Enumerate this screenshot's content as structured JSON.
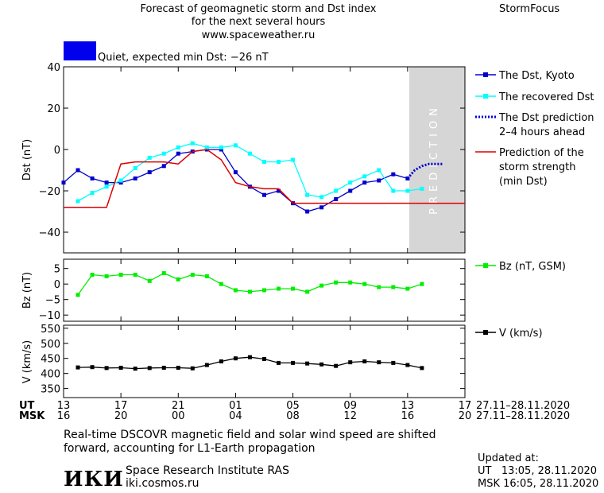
{
  "header": {
    "title_line1": "Forecast of geomagnetic storm and Dst index",
    "title_line2": "for the next several hours",
    "website": "www.spaceweather.ru",
    "brand": "StormFocus"
  },
  "status": {
    "text": "Quiet, expected min Dst: −26 nT",
    "color": "#0000ee"
  },
  "prediction_label": "PREDICTION",
  "time_axis": {
    "ut_label": "UT",
    "msk_label": "MSK",
    "ut_ticks": [
      "13",
      "17",
      "21",
      "01",
      "05",
      "09",
      "13",
      "17"
    ],
    "msk_ticks": [
      "16",
      "20",
      "00",
      "04",
      "08",
      "12",
      "16",
      "20"
    ],
    "ut_range": "27.11–28.11.2020",
    "msk_range": "27.11–28.11.2020"
  },
  "footer": {
    "note_line1": "Real-time DSCOVR magnetic field and solar wind speed are shifted",
    "note_line2": "forward, accounting for L1-Earth propagation",
    "logo_text": "ИКИ",
    "institute": "Space Research Institute RAS",
    "site": "iki.cosmos.ru",
    "updated_label": "Updated at:",
    "updated_ut": "UT   13:05, 28.11.2020",
    "updated_msk": "MSK 16:05, 28.11.2020"
  },
  "chart_data": [
    {
      "type": "line",
      "ylabel": "Dst (nT)",
      "ylim": [
        -50,
        40
      ],
      "yticks": [
        40,
        20,
        0,
        -20,
        -40
      ],
      "xlim": [
        13,
        41
      ],
      "prediction_region": [
        37,
        41
      ],
      "legend": [
        {
          "label": "The Dst, Kyoto",
          "color": "#0000cc",
          "style": "solid-square"
        },
        {
          "label": "The recovered Dst",
          "color": "#00ffff",
          "style": "solid-square"
        },
        {
          "label": "The Dst prediction\n2–4 hours ahead",
          "color": "#0000cc",
          "style": "dotted"
        },
        {
          "label": "Prediction of the\nstorm strength\n(min Dst)",
          "color": "#dd0000",
          "style": "solid"
        }
      ],
      "series": [
        {
          "name": "The Dst, Kyoto",
          "color": "#0000cc",
          "x": [
            13,
            14,
            15,
            16,
            17,
            18,
            19,
            20,
            21,
            22,
            23,
            24,
            25,
            26,
            27,
            28,
            29,
            30,
            31,
            32,
            33,
            34,
            35,
            36,
            37
          ],
          "y": [
            -16,
            -10,
            -14,
            -16,
            -16,
            -14,
            -11,
            -8,
            -2,
            -1,
            0,
            0,
            -11,
            -18,
            -22,
            -20,
            -26,
            -30,
            -28,
            -24,
            -20,
            -16,
            -15,
            -12,
            -14
          ]
        },
        {
          "name": "The recovered Dst",
          "color": "#00ffff",
          "x": [
            14,
            15,
            16,
            17,
            18,
            19,
            20,
            21,
            22,
            23,
            24,
            25,
            26,
            27,
            28,
            29,
            30,
            31,
            32,
            33,
            34,
            35,
            36,
            37,
            38
          ],
          "y": [
            -25,
            -21,
            -18,
            -15,
            -9,
            -4,
            -2,
            1,
            3,
            1,
            1,
            2,
            -2,
            -6,
            -6,
            -5,
            -22,
            -23,
            -20,
            -16,
            -13,
            -10,
            -20,
            -20,
            -19
          ]
        },
        {
          "name": "The Dst prediction 2–4 hours ahead",
          "color": "#0000cc",
          "x": [
            37,
            37.5,
            38,
            38.5,
            39,
            39.5
          ],
          "y": [
            -14,
            -10,
            -8,
            -7,
            -7,
            -7
          ]
        },
        {
          "name": "Prediction of the storm strength (min Dst)",
          "color": "#dd0000",
          "x": [
            13,
            16,
            17,
            18,
            20,
            21,
            22,
            23,
            24,
            25,
            26,
            27,
            28,
            29,
            30,
            41
          ],
          "y": [
            -28,
            -28,
            -7,
            -6,
            -6,
            -7,
            -1,
            0,
            -5,
            -16,
            -18,
            -19,
            -19,
            -26,
            -26,
            -26
          ]
        }
      ]
    },
    {
      "type": "line",
      "ylabel": "Bz (nT)",
      "ylim": [
        -12,
        8
      ],
      "yticks": [
        5,
        0,
        -5,
        -10
      ],
      "xlim": [
        13,
        41
      ],
      "legend": [
        {
          "label": "Bz (nT, GSM)",
          "color": "#00ee00"
        }
      ],
      "series": [
        {
          "name": "Bz (nT, GSM)",
          "color": "#00ee00",
          "x": [
            14,
            15,
            16,
            17,
            18,
            19,
            20,
            21,
            22,
            23,
            24,
            25,
            26,
            27,
            28,
            29,
            30,
            31,
            32,
            33,
            34,
            35,
            36,
            37,
            38
          ],
          "y": [
            -3.5,
            3,
            2.5,
            3,
            3,
            1,
            3.5,
            1.5,
            3,
            2.5,
            0,
            -2,
            -2.5,
            -2,
            -1.5,
            -1.5,
            -2.5,
            -0.5,
            0.5,
            0.5,
            0,
            -1,
            -1,
            -1.5,
            0
          ]
        }
      ]
    },
    {
      "type": "line",
      "ylabel": "V (km/s)",
      "ylim": [
        320,
        560
      ],
      "yticks": [
        550,
        500,
        450,
        400,
        350
      ],
      "xlim": [
        13,
        41
      ],
      "legend": [
        {
          "label": "V (km/s)",
          "color": "#000000"
        }
      ],
      "series": [
        {
          "name": "V (km/s)",
          "color": "#000000",
          "x": [
            14,
            15,
            16,
            17,
            18,
            19,
            20,
            21,
            22,
            23,
            24,
            25,
            26,
            27,
            28,
            29,
            30,
            31,
            32,
            33,
            34,
            35,
            36,
            37,
            38
          ],
          "y": [
            420,
            421,
            418,
            419,
            416,
            418,
            419,
            419,
            417,
            428,
            440,
            450,
            454,
            448,
            435,
            435,
            433,
            430,
            425,
            437,
            440,
            437,
            435,
            428,
            418
          ]
        }
      ]
    }
  ]
}
